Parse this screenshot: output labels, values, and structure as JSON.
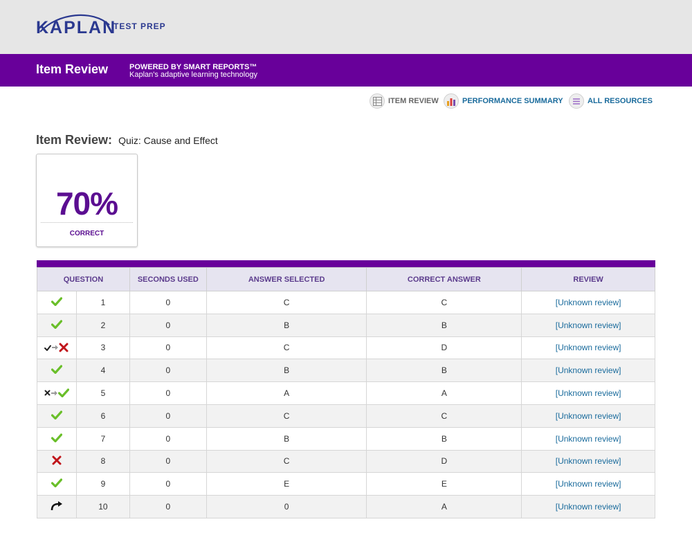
{
  "brand": {
    "logo_text": "KAPLAN",
    "logo_sub": "TEST PREP"
  },
  "header": {
    "title": "Item Review",
    "powered_by": "POWERED BY SMART REPORTS™",
    "tagline": "Kaplan's adaptive learning technology"
  },
  "nav": {
    "item_review": "ITEM REVIEW",
    "performance_summary": "PERFORMANCE SUMMARY",
    "all_resources": "ALL RESOURCES"
  },
  "page": {
    "title": "Item Review:",
    "quiz_name": "Quiz: Cause and Effect"
  },
  "score": {
    "value": "70%",
    "label": "CORRECT"
  },
  "table": {
    "headers": [
      "QUESTION",
      "SECONDS USED",
      "ANSWER SELECTED",
      "CORRECT ANSWER",
      "REVIEW"
    ],
    "rows": [
      {
        "status": "correct",
        "question": "1",
        "seconds": "0",
        "selected": "C",
        "correct": "C",
        "review": "[Unknown review]"
      },
      {
        "status": "correct",
        "question": "2",
        "seconds": "0",
        "selected": "B",
        "correct": "B",
        "review": "[Unknown review]"
      },
      {
        "status": "correct-to-incorrect",
        "question": "3",
        "seconds": "0",
        "selected": "C",
        "correct": "D",
        "review": "[Unknown review]"
      },
      {
        "status": "correct",
        "question": "4",
        "seconds": "0",
        "selected": "B",
        "correct": "B",
        "review": "[Unknown review]"
      },
      {
        "status": "incorrect-to-correct",
        "question": "5",
        "seconds": "0",
        "selected": "A",
        "correct": "A",
        "review": "[Unknown review]"
      },
      {
        "status": "correct",
        "question": "6",
        "seconds": "0",
        "selected": "C",
        "correct": "C",
        "review": "[Unknown review]"
      },
      {
        "status": "correct",
        "question": "7",
        "seconds": "0",
        "selected": "B",
        "correct": "B",
        "review": "[Unknown review]"
      },
      {
        "status": "incorrect",
        "question": "8",
        "seconds": "0",
        "selected": "C",
        "correct": "D",
        "review": "[Unknown review]"
      },
      {
        "status": "correct",
        "question": "9",
        "seconds": "0",
        "selected": "E",
        "correct": "E",
        "review": "[Unknown review]"
      },
      {
        "status": "skipped",
        "question": "10",
        "seconds": "0",
        "selected": "0",
        "correct": "A",
        "review": "[Unknown review]"
      }
    ]
  },
  "colors": {
    "purple": "#68009a",
    "correct_green": "#6abf2a",
    "incorrect_red": "#c0141a",
    "link_blue": "#1a6b9c"
  },
  "icons": {
    "correct": "check-icon",
    "incorrect": "x-icon",
    "skipped": "curved-arrow-icon",
    "nav_item_review": "grid-icon",
    "nav_performance": "bar-chart-icon",
    "nav_resources": "list-icon"
  }
}
